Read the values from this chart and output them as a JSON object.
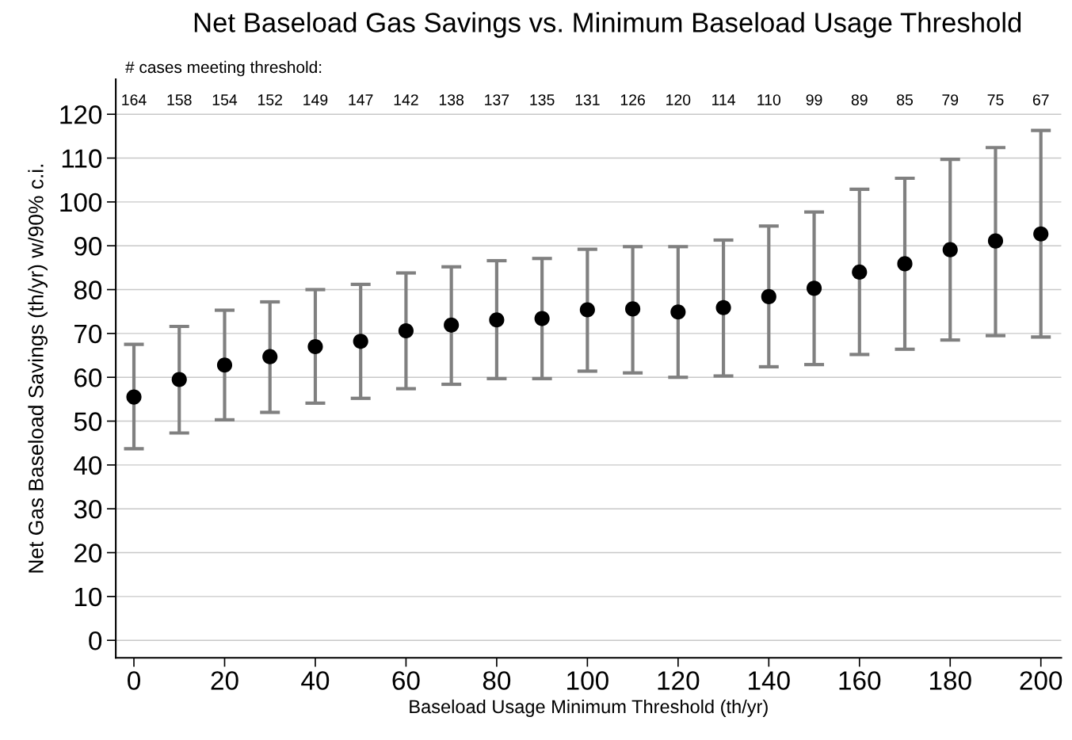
{
  "chart_data": {
    "type": "scatter",
    "title": "Net Baseload Gas Savings vs. Minimum Baseload Usage Threshold",
    "xlabel": "Baseload Usage Minimum Threshold (th/yr)",
    "ylabel": "Net Gas Baseload Savings (th/yr) w/90% c.i.",
    "x": [
      0,
      10,
      20,
      30,
      40,
      50,
      60,
      70,
      80,
      90,
      100,
      110,
      120,
      130,
      140,
      150,
      160,
      170,
      180,
      190,
      200
    ],
    "series": [
      {
        "color": "#000000",
        "values": [
          55.5,
          59.5,
          62.8,
          64.7,
          67.0,
          68.2,
          70.6,
          71.9,
          73.1,
          73.4,
          75.4,
          75.6,
          74.9,
          75.9,
          78.4,
          80.3,
          84.0,
          85.9,
          89.1,
          91.1,
          92.7
        ],
        "errors": [
          [
            43.7,
            67.5
          ],
          [
            47.3,
            71.6
          ],
          [
            50.3,
            75.3
          ],
          [
            52.0,
            77.2
          ],
          [
            54.1,
            80.0
          ],
          [
            55.2,
            81.2
          ],
          [
            57.4,
            83.8
          ],
          [
            58.4,
            85.2
          ],
          [
            59.7,
            86.6
          ],
          [
            59.7,
            87.1
          ],
          [
            61.4,
            89.2
          ],
          [
            61.0,
            89.8
          ],
          [
            60.0,
            89.8
          ],
          [
            60.3,
            91.3
          ],
          [
            62.4,
            94.5
          ],
          [
            62.9,
            97.7
          ],
          [
            65.2,
            102.9
          ],
          [
            66.4,
            105.4
          ],
          [
            68.5,
            109.7
          ],
          [
            69.5,
            112.4
          ],
          [
            69.2,
            116.3
          ]
        ]
      }
    ],
    "xlim": [
      -4,
      204.5
    ],
    "ylim": [
      -4,
      128
    ],
    "xticks": [
      0,
      20,
      40,
      60,
      80,
      100,
      120,
      140,
      160,
      180,
      200
    ],
    "yticks": [
      0,
      10,
      20,
      30,
      40,
      50,
      60,
      70,
      80,
      90,
      100,
      110,
      120
    ],
    "grid": "y",
    "marker": "circle",
    "annotations": [
      "# cases meeting threshold:",
      "164",
      "158",
      "154",
      "152",
      "149",
      "147",
      "142",
      "138",
      "137",
      "135",
      "131",
      "126",
      "120",
      "114",
      "110",
      "99",
      "89",
      "85",
      "79",
      "75",
      "67"
    ]
  }
}
